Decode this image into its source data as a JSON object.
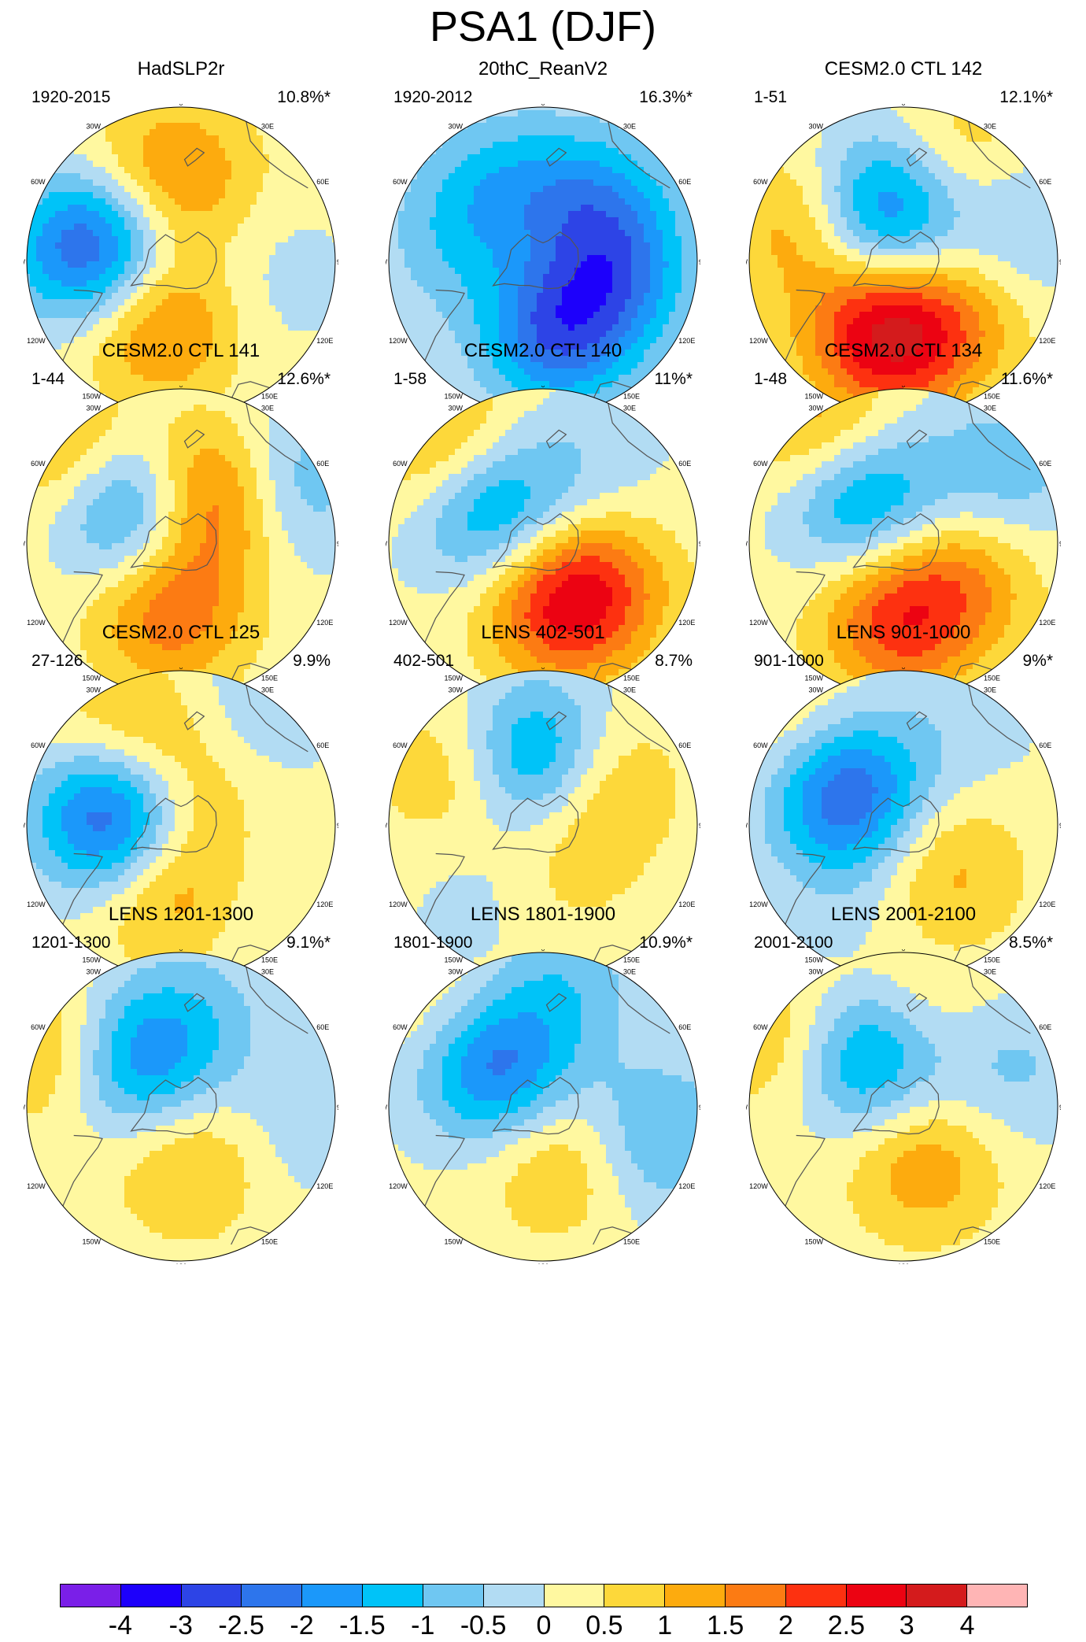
{
  "title": "PSA1 (DJF)",
  "colors": {
    "levels": [
      "#7a1fe8",
      "#1d00fb",
      "#2d44e6",
      "#2d75ec",
      "#1b98fa",
      "#00c3f8",
      "#6fc7f2",
      "#b2dcf3",
      "#fff8a0",
      "#fdd83a",
      "#fdab0e",
      "#fc7b13",
      "#fd3110",
      "#ec0312",
      "#d41b1c",
      "#ffb5b5"
    ],
    "coast": "#555555",
    "frame": "#000000"
  },
  "longitude_labels": [
    "0",
    "30E",
    "60E",
    "90E",
    "120E",
    "150E",
    "180",
    "150W",
    "120W",
    "90W",
    "60W",
    "30W"
  ],
  "colorbar": {
    "labels": [
      "-4",
      "-3",
      "-2.5",
      "-2",
      "-1.5",
      "-1",
      "-0.5",
      "0",
      "0.5",
      "1",
      "1.5",
      "2",
      "2.5",
      "3",
      "4"
    ]
  },
  "chart_data": {
    "type": "polar-stereographic contour maps (Southern Hemisphere)",
    "title": "PSA1 (DJF)",
    "variable": "sea level pressure pattern anomaly",
    "contour_levels": [
      -4,
      -3,
      -2.5,
      -2,
      -1.5,
      -1,
      -0.5,
      0,
      0.5,
      1,
      1.5,
      2,
      2.5,
      3,
      4
    ],
    "panels": [
      {
        "name": "HadSLP2r",
        "years": "1920-2015",
        "variance": "10.8%*",
        "features": [
          {
            "lon": -100,
            "colat": 0.58,
            "amp": -3.0
          },
          {
            "lon": -20,
            "colat": 0.42,
            "amp": 1.7
          },
          {
            "lon": 175,
            "colat": 0.55,
            "amp": 1.0
          },
          {
            "lon": -150,
            "colat": 0.6,
            "amp": 0.8
          },
          {
            "lon": 80,
            "colat": 0.6,
            "amp": -0.4
          }
        ]
      },
      {
        "name": "20thC_ReanV2",
        "years": "1920-2012",
        "variance": "16.3%*",
        "features": [
          {
            "lon": 10,
            "colat": 0.45,
            "amp": -2.6
          },
          {
            "lon": 80,
            "colat": 0.48,
            "amp": -1.8
          },
          {
            "lon": 140,
            "colat": 0.5,
            "amp": -1.6
          },
          {
            "lon": -150,
            "colat": 0.55,
            "amp": -1.2
          },
          {
            "lon": -100,
            "colat": 0.6,
            "amp": -0.8
          },
          {
            "lon": 0,
            "colat": 0.05,
            "amp": 0.6
          }
        ]
      },
      {
        "name": "CESM2.0 CTL 142",
        "years": "1-51",
        "variance": "12.1%*",
        "features": [
          {
            "lon": -15,
            "colat": 0.5,
            "amp": 2.7
          },
          {
            "lon": 40,
            "colat": 0.5,
            "amp": 1.1
          },
          {
            "lon": -160,
            "colat": 0.35,
            "amp": -2.6
          },
          {
            "lon": -110,
            "colat": 0.68,
            "amp": 1.3
          },
          {
            "lon": 150,
            "colat": 0.75,
            "amp": 1.0
          },
          {
            "lon": 110,
            "colat": 0.8,
            "amp": -0.9
          }
        ]
      },
      {
        "name": "CESM2.0 CTL 141",
        "years": "1-44",
        "variance": "12.6%*",
        "features": [
          {
            "lon": -10,
            "colat": 0.45,
            "amp": 1.7
          },
          {
            "lon": -130,
            "colat": 0.42,
            "amp": -2.9
          },
          {
            "lon": 150,
            "colat": 0.35,
            "amp": 2.7
          },
          {
            "lon": -130,
            "colat": 0.82,
            "amp": 1.6
          },
          {
            "lon": 120,
            "colat": 0.75,
            "amp": -1.4
          }
        ]
      },
      {
        "name": "CESM2.0 CTL 140",
        "years": "1-58",
        "variance": "11%*",
        "features": [
          {
            "lon": 10,
            "colat": 0.42,
            "amp": 1.7
          },
          {
            "lon": 50,
            "colat": 0.45,
            "amp": 1.5
          },
          {
            "lon": -125,
            "colat": 0.42,
            "amp": -2.2
          },
          {
            "lon": -135,
            "colat": 0.85,
            "amp": 1.5
          },
          {
            "lon": 150,
            "colat": 0.6,
            "amp": -0.5
          }
        ]
      },
      {
        "name": "CESM2.0 CTL 134",
        "years": "1-48",
        "variance": "11.6%*",
        "features": [
          {
            "lon": -5,
            "colat": 0.5,
            "amp": 2.0
          },
          {
            "lon": 60,
            "colat": 0.45,
            "amp": 1.2
          },
          {
            "lon": -140,
            "colat": 0.42,
            "amp": -2.3
          },
          {
            "lon": -145,
            "colat": 0.85,
            "amp": 1.6
          },
          {
            "lon": 125,
            "colat": 0.8,
            "amp": -1.0
          }
        ]
      },
      {
        "name": "CESM2.0 CTL 125",
        "years": "27-126",
        "variance": "9.9%",
        "features": [
          {
            "lon": -15,
            "colat": 0.38,
            "amp": 1.6
          },
          {
            "lon": -95,
            "colat": 0.42,
            "amp": -3.2
          },
          {
            "lon": 175,
            "colat": 0.3,
            "amp": 1.1
          },
          {
            "lon": -150,
            "colat": 0.75,
            "amp": 0.9
          },
          {
            "lon": 150,
            "colat": 0.8,
            "amp": -0.7
          },
          {
            "lon": 40,
            "colat": 0.7,
            "amp": -0.3
          }
        ]
      },
      {
        "name": "LENS 402-501",
        "years": "402-501",
        "variance": "8.7%",
        "features": [
          {
            "lon": 180,
            "colat": 0.4,
            "amp": -2.9
          },
          {
            "lon": 135,
            "colat": 0.4,
            "amp": 1.8
          },
          {
            "lon": -120,
            "colat": 0.62,
            "amp": 1.0
          },
          {
            "lon": 10,
            "colat": 0.3,
            "amp": 0.6
          },
          {
            "lon": -40,
            "colat": 0.55,
            "amp": -0.5
          }
        ]
      },
      {
        "name": "LENS 901-1000",
        "years": "901-1000",
        "variance": "9%*",
        "features": [
          {
            "lon": -120,
            "colat": 0.45,
            "amp": -2.9
          },
          {
            "lon": 40,
            "colat": 0.4,
            "amp": 1.1
          },
          {
            "lon": -130,
            "colat": 0.85,
            "amp": 0.9
          },
          {
            "lon": 150,
            "colat": 0.75,
            "amp": -0.4
          },
          {
            "lon": -30,
            "colat": 0.5,
            "amp": -0.4
          }
        ]
      },
      {
        "name": "LENS 1201-1300",
        "years": "1201-1300",
        "variance": "9.1%*",
        "features": [
          {
            "lon": -135,
            "colat": 0.42,
            "amp": -2.3
          },
          {
            "lon": 10,
            "colat": 0.35,
            "amp": 1.1
          },
          {
            "lon": -115,
            "colat": 0.82,
            "amp": 1.3
          },
          {
            "lon": 165,
            "colat": 0.65,
            "amp": -0.6
          },
          {
            "lon": 80,
            "colat": 0.72,
            "amp": -0.5
          }
        ]
      },
      {
        "name": "LENS 1801-1900",
        "years": "1801-1900",
        "variance": "10.9%*",
        "features": [
          {
            "lon": -130,
            "colat": 0.42,
            "amp": -2.6
          },
          {
            "lon": 20,
            "colat": 0.35,
            "amp": 1.1
          },
          {
            "lon": 170,
            "colat": 0.82,
            "amp": -0.9
          },
          {
            "lon": 75,
            "colat": 0.75,
            "amp": -1.3
          },
          {
            "lon": -135,
            "colat": 0.82,
            "amp": 0.8
          }
        ]
      },
      {
        "name": "LENS 2001-2100",
        "years": "2001-2100",
        "variance": "8.5%*",
        "features": [
          {
            "lon": -140,
            "colat": 0.42,
            "amp": -2.3
          },
          {
            "lon": 20,
            "colat": 0.38,
            "amp": 1.3
          },
          {
            "lon": -120,
            "colat": 0.82,
            "amp": 1.2
          },
          {
            "lon": 110,
            "colat": 0.72,
            "amp": -0.8
          },
          {
            "lon": 170,
            "colat": 0.7,
            "amp": 0.6
          }
        ]
      }
    ]
  }
}
